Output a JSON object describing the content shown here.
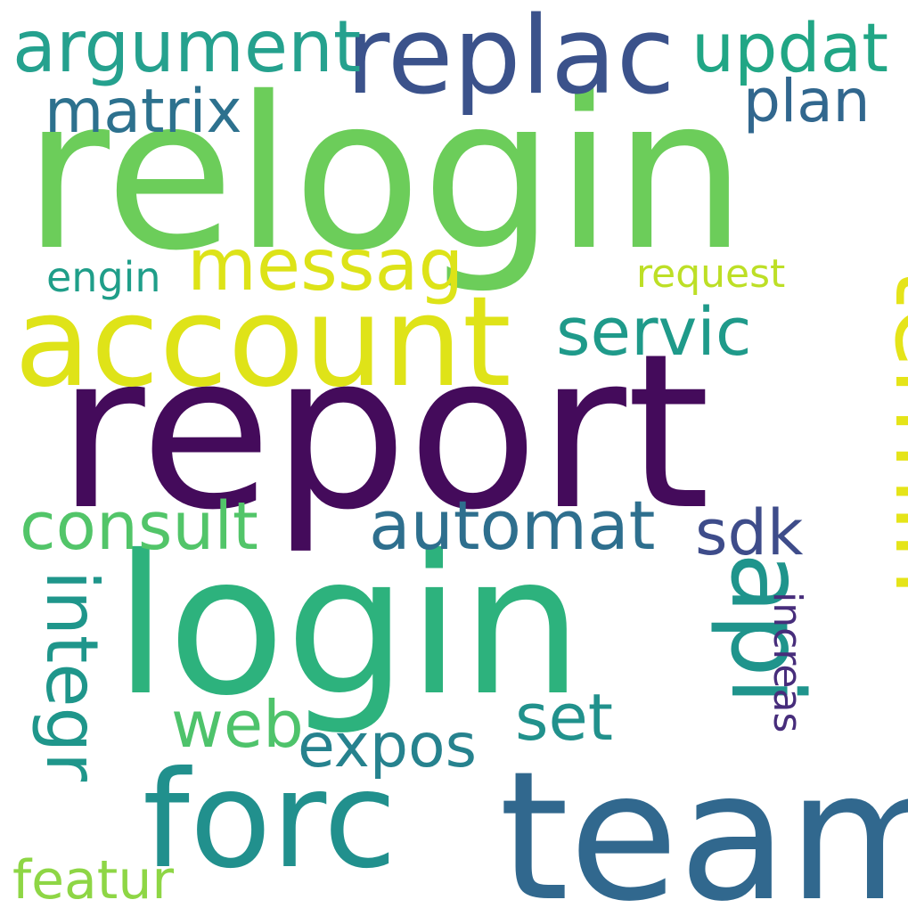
{
  "words": [
    {
      "text": "relogin",
      "color": "#6ccd5a"
    },
    {
      "text": "report",
      "color": "#440b5b"
    },
    {
      "text": "login",
      "color": "#2db27d"
    },
    {
      "text": "team",
      "color": "#31688e"
    },
    {
      "text": "account",
      "color": "#dfe318"
    },
    {
      "text": "forc",
      "color": "#21908d"
    },
    {
      "text": "termin",
      "color": "#e5e419"
    },
    {
      "text": "api",
      "color": "#1f948c"
    },
    {
      "text": "replac",
      "color": "#3b528b"
    },
    {
      "text": "argument",
      "color": "#25a18e"
    },
    {
      "text": "updat",
      "color": "#21a685"
    },
    {
      "text": "messag",
      "color": "#dde318"
    },
    {
      "text": "automat",
      "color": "#2e6f8e"
    },
    {
      "text": "consult",
      "color": "#52c569"
    },
    {
      "text": "servic",
      "color": "#1f9a8a"
    },
    {
      "text": "integr",
      "color": "#1f968b"
    },
    {
      "text": "matrix",
      "color": "#2d718e"
    },
    {
      "text": "plan",
      "color": "#31678e"
    },
    {
      "text": "sdk",
      "color": "#3e4c8a"
    },
    {
      "text": "web",
      "color": "#4ec36b"
    },
    {
      "text": "set",
      "color": "#21918c"
    },
    {
      "text": "expos",
      "color": "#26828e"
    },
    {
      "text": "increas",
      "color": "#472d7b"
    },
    {
      "text": "featur",
      "color": "#8ed645"
    },
    {
      "text": "engin",
      "color": "#1f9e89"
    },
    {
      "text": "request",
      "color": "#bddf26"
    }
  ]
}
